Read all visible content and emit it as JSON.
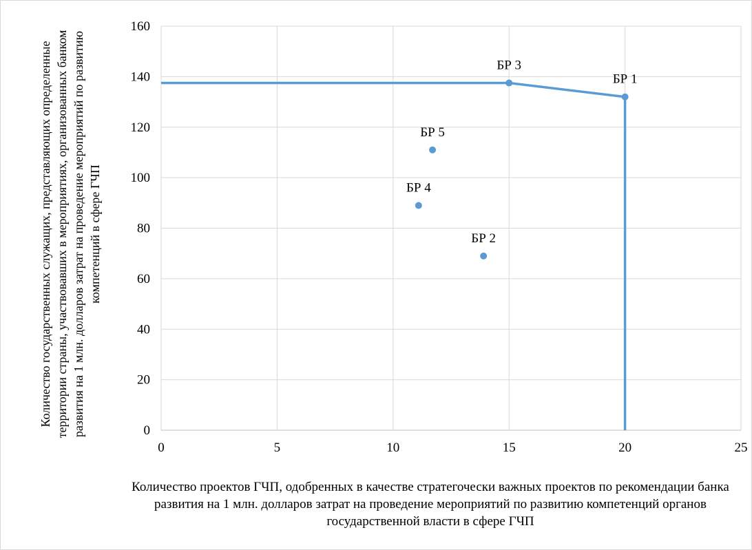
{
  "chart_data": {
    "type": "scatter",
    "xlabel": "Количество проектов ГЧП, одобренных в качестве стратегочески важных проектов по рекомендации банка развития на 1 млн. долларов затрат на проведение мероприятий по развитию компетенций органов государственной власти в сфере ГЧП",
    "ylabel": "Количество государственных служащих, представляющих определенные территории страны, участвовавших в мероприятиях, организованных банком развития на 1 млн. долларов затрат на проведение мероприятий по развитию компетенций в сфере ГЧП",
    "xlim": [
      0,
      25
    ],
    "ylim": [
      0,
      160
    ],
    "xticks": [
      "0",
      "5",
      "10",
      "15",
      "20",
      "25"
    ],
    "yticks": [
      "0",
      "20",
      "40",
      "60",
      "80",
      "100",
      "120",
      "140",
      "160"
    ],
    "grid": true,
    "color": "#5b9bd5",
    "points": [
      {
        "label": "БР 1",
        "x": 20,
        "y": 132
      },
      {
        "label": "БР 2",
        "x": 13.9,
        "y": 69
      },
      {
        "label": "БР 3",
        "x": 15,
        "y": 137.5
      },
      {
        "label": "БР 4",
        "x": 11.1,
        "y": 89
      },
      {
        "label": "БР 5",
        "x": 11.7,
        "y": 111
      }
    ],
    "frontier": [
      {
        "x": 0,
        "y": 137.5
      },
      {
        "x": 15,
        "y": 137.5
      },
      {
        "x": 20,
        "y": 132
      },
      {
        "x": 20,
        "y": 0
      }
    ]
  }
}
